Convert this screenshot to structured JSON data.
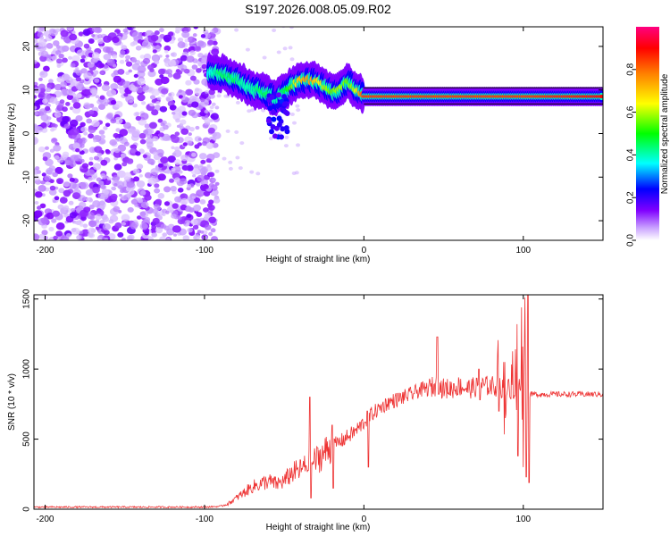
{
  "figure_title": "S197.2026.008.05.09.R02",
  "chart_data": [
    {
      "type": "heatmap",
      "title": "",
      "xlabel": "Height of straight line (km)",
      "ylabel": "Frequency (Hz)",
      "xlim": [
        -207,
        150
      ],
      "ylim": [
        -24.5,
        24.5
      ],
      "xticks": [
        "-200",
        "-100",
        "0",
        "100"
      ],
      "xtick_values": [
        -200,
        -100,
        0,
        100
      ],
      "yticks": [
        "-20",
        "-10",
        "0",
        "10",
        "20"
      ],
      "ytick_values": [
        -20,
        -10,
        0,
        10,
        20
      ],
      "grid": false,
      "ridge": {
        "x": [
          -97,
          -90,
          -85,
          -80,
          -75,
          -70,
          -65,
          -60,
          -55,
          -50,
          -45,
          -40,
          -35,
          -30,
          -25,
          -20,
          -15,
          -10,
          -5,
          0,
          20,
          40,
          60,
          80,
          95,
          100,
          150
        ],
        "frequency": [
          14,
          14,
          13,
          12.5,
          11.5,
          10,
          10,
          9,
          8,
          9.5,
          11,
          12,
          12.5,
          12,
          11,
          9.5,
          10,
          12,
          10,
          8.5,
          8.5,
          8.5,
          8.5,
          8.5,
          8.5,
          8.5,
          8.5
        ],
        "amplitude": [
          0.35,
          0.45,
          0.45,
          0.45,
          0.4,
          0.4,
          0.45,
          0.45,
          0.4,
          0.45,
          0.55,
          0.7,
          0.75,
          0.7,
          0.6,
          0.55,
          0.6,
          0.55,
          0.6,
          0.85,
          0.85,
          0.85,
          0.85,
          0.85,
          0.85,
          0.85,
          0.9
        ]
      },
      "colorbar": {
        "label": "Normalized spectral amplitude",
        "ticks": [
          "0.0",
          "0.2",
          "0.4",
          "0.6",
          "0.8"
        ],
        "tick_values": [
          0,
          0.2,
          0.4,
          0.6,
          0.8
        ],
        "range": [
          0,
          1
        ],
        "colors": [
          "#ffffff",
          "#8000ff",
          "#0000ff",
          "#00ffff",
          "#00ff00",
          "#ffff00",
          "#ff8000",
          "#ff0000",
          "#ff0080"
        ]
      }
    },
    {
      "type": "line",
      "title": "",
      "xlabel": "Height of straight line (km)",
      "ylabel": "SNR (10 * v/v)",
      "xlim": [
        -207,
        150
      ],
      "ylim": [
        0,
        1530
      ],
      "xticks": [
        "-200",
        "-100",
        "0",
        "100"
      ],
      "xtick_values": [
        -200,
        -100,
        0,
        100
      ],
      "yticks": [
        "0",
        "500",
        "1000",
        "1500"
      ],
      "ytick_values": [
        0,
        500,
        1000,
        1500
      ],
      "grid": false,
      "color": "#ee3333",
      "x": [
        -207,
        -200,
        -180,
        -160,
        -140,
        -120,
        -100,
        -90,
        -85,
        -80,
        -75,
        -70,
        -65,
        -60,
        -55,
        -50,
        -45,
        -40,
        -35,
        -30,
        -25,
        -20,
        -15,
        -10,
        -5,
        0,
        5,
        10,
        15,
        20,
        25,
        30,
        35,
        40,
        45,
        50,
        55,
        60,
        65,
        70,
        75,
        80,
        85,
        90,
        95,
        100,
        102,
        105,
        110,
        120,
        130,
        140,
        150
      ],
      "y": [
        15,
        15,
        15,
        15,
        15,
        15,
        15,
        20,
        40,
        80,
        120,
        160,
        180,
        200,
        180,
        200,
        260,
        280,
        320,
        350,
        400,
        450,
        480,
        520,
        560,
        620,
        680,
        720,
        760,
        780,
        800,
        820,
        850,
        860,
        880,
        860,
        860,
        880,
        860,
        870,
        880,
        880,
        870,
        860,
        860,
        880,
        820,
        820,
        820,
        820,
        820,
        820,
        820
      ],
      "spikes": {
        "x": [
          -34,
          -20,
          2,
          46,
          72,
          84,
          88,
          96,
          99,
          101,
          103
        ],
        "peak": [
          800,
          600,
          700,
          1230,
          1000,
          1110,
          1050,
          1320,
          1440,
          1510,
          1530
        ],
        "trough": [
          80,
          150,
          300,
          820,
          780,
          700,
          650,
          380,
          300,
          230,
          190
        ]
      }
    }
  ]
}
